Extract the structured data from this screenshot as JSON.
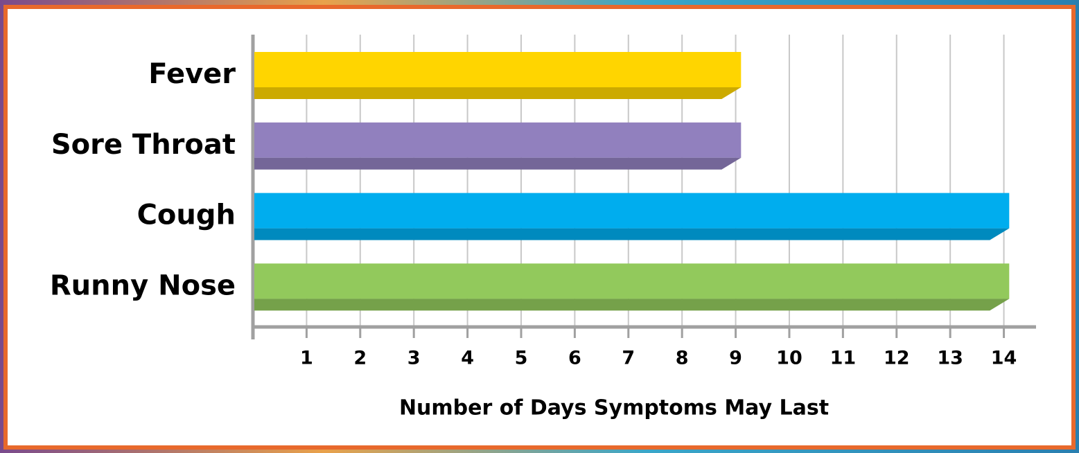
{
  "chart_data": {
    "type": "bar",
    "orientation": "horizontal",
    "x_label": "Number of Days Symptoms May Last",
    "categories": [
      "Fever",
      "Sore Throat",
      "Cough",
      "Runny Nose"
    ],
    "values": [
      9.1,
      9.1,
      14.1,
      14.1
    ],
    "colors": [
      "#ffd500",
      "#9180be",
      "#00adee",
      "#92c95c"
    ],
    "xlim": [
      0,
      14.6
    ],
    "xticks": [
      1,
      2,
      3,
      4,
      5,
      6,
      7,
      8,
      9,
      10,
      11,
      12,
      13,
      14
    ],
    "grid": true
  }
}
